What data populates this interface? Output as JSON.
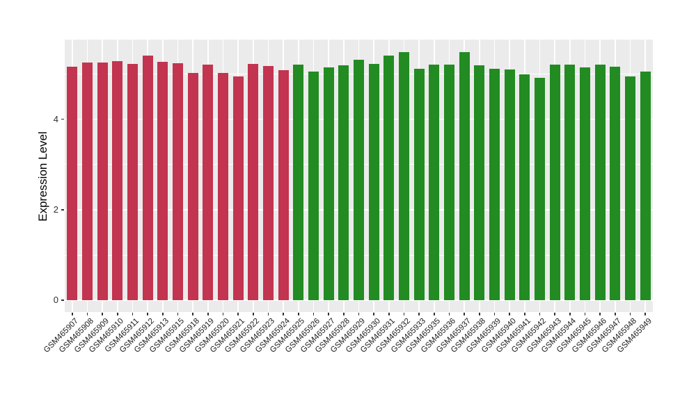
{
  "figure": {
    "background": "#FFFFFF",
    "panel_background": "#EBEBEB",
    "grid_color": "#FFFFFF",
    "tick_color": "#333333",
    "axis_text_color": "#303030",
    "axis_title_color": "#000000"
  },
  "chart_data": {
    "type": "bar",
    "title": "",
    "xlabel": "",
    "ylabel": "Expression Level",
    "ylim": [
      -0.26,
      5.76
    ],
    "yticks": [
      0,
      2,
      4
    ],
    "ytick_labels": [
      "0",
      "2",
      "4"
    ],
    "yticks_minor": [
      1,
      3,
      5
    ],
    "grid": true,
    "legend_position": "none",
    "bar_width_fraction": 0.7,
    "categories": [
      "GSM465907",
      "GSM465908",
      "GSM465909",
      "GSM465910",
      "GSM465911",
      "GSM465912",
      "GSM465913",
      "GSM465915",
      "GSM465918",
      "GSM465919",
      "GSM465920",
      "GSM465921",
      "GSM465922",
      "GSM465923",
      "GSM465924",
      "GSM465925",
      "GSM465926",
      "GSM465927",
      "GSM465928",
      "GSM465929",
      "GSM465930",
      "GSM465931",
      "GSM465932",
      "GSM465933",
      "GSM465935",
      "GSM465936",
      "GSM465937",
      "GSM465938",
      "GSM465939",
      "GSM465940",
      "GSM465941",
      "GSM465942",
      "GSM465943",
      "GSM465944",
      "GSM465945",
      "GSM465946",
      "GSM465947",
      "GSM465948",
      "GSM465949"
    ],
    "values": [
      5.16,
      5.25,
      5.25,
      5.28,
      5.22,
      5.4,
      5.27,
      5.24,
      5.03,
      5.2,
      5.03,
      4.94,
      5.22,
      5.18,
      5.08,
      5.21,
      5.05,
      5.14,
      5.19,
      5.32,
      5.23,
      5.41,
      5.49,
      5.11,
      5.2,
      5.2,
      5.48,
      5.19,
      5.12,
      5.1,
      4.99,
      4.92,
      5.21,
      5.21,
      5.15,
      5.21,
      5.16,
      4.95,
      5.06
    ],
    "groups": [
      {
        "color": "#C2344F",
        "start_index": 0,
        "end_index": 14
      },
      {
        "color": "#228B22",
        "start_index": 15,
        "end_index": 38
      }
    ]
  }
}
